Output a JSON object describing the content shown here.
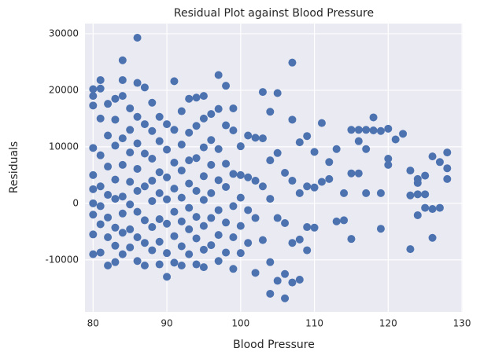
{
  "chart_data": {
    "type": "scatter",
    "title": "Residual Plot against Blood Pressure",
    "x_label": "Blood Pressure",
    "y_label": "Residuals",
    "color": "#4c72b0",
    "grid": true,
    "xlim": [
      78.9,
      130.1
    ],
    "ylim": [
      -19200,
      31800
    ],
    "xticks": [
      80,
      90,
      100,
      110,
      120,
      130
    ],
    "yticks": [
      -10000,
      0,
      10000,
      20000,
      30000
    ],
    "x": [
      80,
      80,
      80,
      80,
      80,
      80,
      80,
      80,
      80,
      80,
      81,
      81,
      81,
      81,
      81,
      81,
      81,
      81,
      82,
      82,
      82,
      82,
      82,
      82,
      82,
      83,
      83,
      83,
      83,
      83,
      83,
      83,
      83,
      84,
      84,
      84,
      84,
      84,
      84,
      84,
      84,
      84,
      85,
      85,
      85,
      85,
      85,
      85,
      85,
      86,
      86,
      86,
      86,
      86,
      86,
      86,
      86,
      86,
      87,
      87,
      87,
      87,
      87,
      87,
      87,
      88,
      88,
      88,
      88,
      88,
      88,
      88,
      89,
      89,
      89,
      89,
      89,
      89,
      89,
      90,
      90,
      90,
      90,
      90,
      90,
      90,
      91,
      91,
      91,
      91,
      91,
      91,
      91,
      92,
      92,
      92,
      92,
      92,
      92,
      92,
      93,
      93,
      93,
      93,
      93,
      93,
      93,
      94,
      94,
      94,
      94,
      94,
      94,
      94,
      95,
      95,
      95,
      95,
      95,
      95,
      95,
      95,
      96,
      96,
      96,
      96,
      96,
      96,
      97,
      97,
      97,
      97,
      97,
      97,
      97,
      98,
      98,
      98,
      98,
      98,
      98,
      99,
      99,
      99,
      99,
      99,
      99,
      100,
      100,
      100,
      100,
      100,
      101,
      101,
      101,
      101,
      102,
      102,
      102,
      102,
      103,
      103,
      103,
      103,
      104,
      104,
      104,
      104,
      104,
      105,
      105,
      105,
      105,
      106,
      106,
      106,
      106,
      107,
      107,
      107,
      107,
      107,
      108,
      108,
      108,
      108,
      109,
      109,
      109,
      109,
      110,
      110,
      110,
      111,
      111,
      112,
      112,
      113,
      113,
      114,
      114,
      115,
      115,
      115,
      116,
      116,
      116,
      117,
      117,
      117,
      118,
      118,
      119,
      119,
      119,
      120,
      120,
      120,
      121,
      122,
      123,
      123,
      123,
      124,
      124,
      124,
      124,
      125,
      125,
      125,
      126,
      126,
      126,
      127,
      127,
      128,
      128,
      128
    ],
    "values": [
      20200,
      19000,
      17300,
      9800,
      5000,
      2500,
      0,
      -2000,
      -5500,
      -9000,
      20300,
      21800,
      15000,
      8500,
      3000,
      -500,
      -3700,
      -8700,
      17600,
      12000,
      6500,
      1500,
      -2500,
      -6000,
      -11000,
      18500,
      14800,
      10200,
      4200,
      800,
      -4300,
      -7500,
      -10400,
      25300,
      21800,
      19000,
      11500,
      6800,
      1200,
      -1800,
      -5200,
      -9000,
      16800,
      13000,
      9000,
      3800,
      -200,
      -4600,
      -7800,
      29300,
      21300,
      15300,
      10600,
      6100,
      2200,
      -1500,
      -6000,
      -10200,
      20500,
      14000,
      8800,
      3000,
      -3000,
      -7000,
      -11000,
      17800,
      12800,
      7900,
      4000,
      400,
      -4200,
      -8300,
      15300,
      11000,
      5500,
      1800,
      -2800,
      -6800,
      -10800,
      14000,
      9500,
      4600,
      700,
      -3600,
      -8800,
      -13000,
      21600,
      13000,
      7200,
      2600,
      -1500,
      -5800,
      -10500,
      16300,
      10400,
      5800,
      1000,
      -3200,
      -7600,
      -11000,
      18500,
      12500,
      7600,
      3500,
      -800,
      -4600,
      -9000,
      18700,
      13700,
      8000,
      2200,
      -2400,
      -6200,
      -10800,
      19000,
      15000,
      9900,
      4800,
      600,
      -4000,
      -8200,
      -11300,
      15800,
      11200,
      6800,
      1800,
      -2600,
      -7400,
      22700,
      16700,
      9600,
      4100,
      -1200,
      -5600,
      -10200,
      20800,
      13800,
      7000,
      2900,
      -3400,
      -8700,
      16800,
      12900,
      5200,
      -500,
      -6000,
      -11600,
      10100,
      5000,
      1000,
      -4000,
      -8800,
      12000,
      4600,
      -1200,
      -7000,
      11600,
      4000,
      -2600,
      -12300,
      19700,
      11500,
      3000,
      -6500,
      16200,
      7600,
      800,
      -10400,
      -16000,
      19500,
      8900,
      -2600,
      -13700,
      5400,
      -3500,
      -12500,
      -16800,
      24900,
      14800,
      4000,
      -7000,
      -14000,
      10800,
      1800,
      -6400,
      -13500,
      11900,
      3000,
      -4200,
      -8300,
      9100,
      2800,
      -4300,
      14200,
      3800,
      7300,
      4300,
      9600,
      -3200,
      1800,
      -3000,
      13000,
      5300,
      -6300,
      13000,
      11000,
      5300,
      13000,
      9600,
      1800,
      15200,
      12900,
      12800,
      1800,
      -4500,
      13200,
      7900,
      6800,
      11300,
      12300,
      5800,
      1400,
      -8100,
      4300,
      3600,
      1600,
      -2100,
      4900,
      1600,
      -800,
      8300,
      -1000,
      -6100,
      7300,
      -800,
      9000,
      6200,
      4300
    ]
  }
}
